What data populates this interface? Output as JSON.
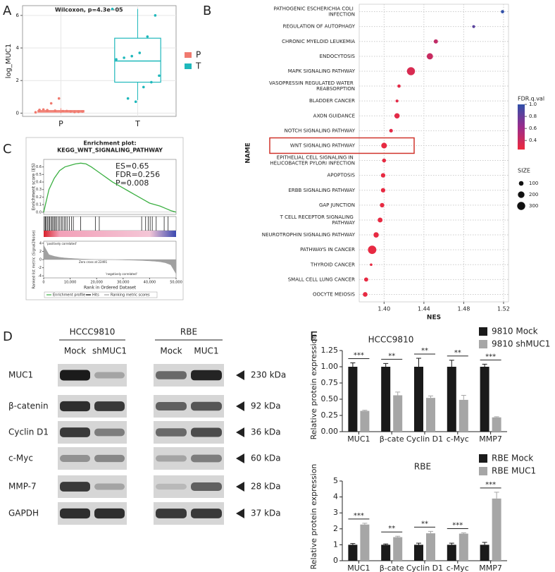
{
  "panels": [
    "A",
    "B",
    "C",
    "D",
    "E"
  ],
  "chart_data": [
    {
      "type": "box",
      "title": "Wilcoxon, p=4.3e−05",
      "ylabel": "log_MUC1",
      "categories": [
        "P",
        "T"
      ],
      "ylim": [
        -0.2,
        6.6
      ],
      "yticks": [
        0,
        2,
        4,
        6
      ],
      "grid": true,
      "legend": "right",
      "series": [
        {
          "name": "P",
          "color": "#f07a6f",
          "stats": {
            "min": 0,
            "q1": 0.06,
            "median": 0.1,
            "q3": 0.16,
            "max": 0.3
          },
          "points": [
            0.05,
            0.08,
            0.1,
            0.12,
            0.15,
            0.18,
            0.2,
            0.1,
            0.07,
            0.13,
            0.9,
            0.6,
            0.22
          ]
        },
        {
          "name": "T",
          "color": "#1fb8bb",
          "stats": {
            "min": 0.8,
            "q1": 1.9,
            "median": 3.2,
            "q3": 4.6,
            "max": 6.4
          },
          "points": [
            6.4,
            6.0,
            4.7,
            3.7,
            3.5,
            3.4,
            3.3,
            2.3,
            1.9,
            1.6,
            0.7,
            0.9
          ]
        }
      ]
    },
    {
      "type": "dot",
      "xlabel": "NES",
      "ylabel": "NAME",
      "categories": [
        "PATHOGENIC ESCHERICHIA COLI INFECTION",
        "REGULATION OF AUTOPHAGY",
        "CHRONIC MYELOID LEUKEMIA",
        "ENDOCYTOSIS",
        "MAPK SIGNALING PATHWAY",
        "VASOPRESSIN REGULATED WATER REABSORPTION",
        "BLADDER CANCER",
        "AXON GUIDANCE",
        "NOTCH SIGNALING PATHWAY",
        "WNT SIGNALING PATHWAY",
        "EPITHELIAL CELL SIGNALING IN HELICOBACTER PYLORI INFECTION",
        "APOPTOSIS",
        "ERBB SIGNALING PATHWAY",
        "GAP JUNCTION",
        "T CELL RECEPTOR SIGNALING PATHWAY",
        "NEUROTROPHIN SIGNALING PATHWAY",
        "PATHWAYS IN CANCER",
        "THYROID CANCER",
        "SMALL CELL LUNG CANCER",
        "OOCYTE MEIOSIS"
      ],
      "values": [
        1.519,
        1.49,
        1.452,
        1.446,
        1.427,
        1.415,
        1.413,
        1.413,
        1.407,
        1.4,
        1.4,
        1.399,
        1.399,
        1.398,
        1.396,
        1.392,
        1.388,
        1.387,
        1.382,
        1.381
      ],
      "sizes": [
        50,
        40,
        80,
        180,
        300,
        50,
        40,
        130,
        60,
        150,
        70,
        90,
        90,
        90,
        110,
        130,
        325,
        30,
        80,
        100
      ],
      "colors_by": [
        1.0,
        0.85,
        0.45,
        0.42,
        0.35,
        0.3,
        0.3,
        0.3,
        0.3,
        0.28,
        0.28,
        0.28,
        0.28,
        0.28,
        0.28,
        0.28,
        0.28,
        0.28,
        0.28,
        0.28
      ],
      "xlim": [
        1.375,
        1.525
      ],
      "xticks": [
        {
          "value": 1.4,
          "label": "1.40"
        },
        {
          "value": 1.44,
          "label": "1.44"
        },
        {
          "value": 1.48,
          "label": "1.48"
        },
        {
          "value": 1.52,
          "label": "1.52"
        }
      ],
      "grid": true,
      "color_title": "FDR.q.val",
      "color_lim": [
        0.25,
        1.0
      ],
      "color_range": [
        "#ee2a3c",
        "#9a2c8c",
        "#3050a8"
      ],
      "color_ticks": [
        0.4,
        0.6,
        0.8,
        {
          "value": 1.0,
          "label": "1.0"
        }
      ],
      "size_title": "SIZE",
      "size_ticks": [
        100,
        200,
        300
      ]
    },
    {
      "type": "line",
      "title": "Enrichment plot:",
      "subtitle": "KEGG_WNT_SIGNALING_PATHWAY",
      "ylabel": "Enrichment score (ES)",
      "y2label": "Ranked list metric (Signal2Noise)",
      "xlabel": "Rank in Ordered Dataset",
      "annotations": [
        "ES=0.65",
        "FDR=0.256",
        "P=0.008"
      ],
      "notes": [
        "'positively correlated'",
        "Zero cross at 22491",
        "'negatively correlated'"
      ],
      "x": [
        0,
        2000,
        4000,
        6000,
        8000,
        10000,
        12000,
        14000,
        16000,
        18000,
        20000,
        22000,
        24000,
        26000,
        28000,
        30000,
        32000,
        34000,
        36000,
        38000,
        40000,
        42000,
        44000,
        46000,
        48000,
        50000
      ],
      "series": [
        {
          "name": "Enrichment profile",
          "color": "#3cb043",
          "values": [
            0,
            0.3,
            0.45,
            0.55,
            0.6,
            0.62,
            0.64,
            0.65,
            0.64,
            0.6,
            0.55,
            0.5,
            0.45,
            0.4,
            0.36,
            0.32,
            0.28,
            0.24,
            0.2,
            0.16,
            0.12,
            0.1,
            0.08,
            0.05,
            0.02,
            0
          ]
        },
        {
          "name": "Ranking metric scores",
          "color": "#a0a0a0",
          "axis": "y2",
          "values": [
            3.5,
            1.2,
            0.8,
            0.55,
            0.4,
            0.3,
            0.22,
            0.15,
            0.1,
            0.06,
            0.03,
            0.01,
            -0.01,
            -0.03,
            -0.06,
            -0.09,
            -0.12,
            -0.16,
            -0.2,
            -0.26,
            -0.33,
            -0.42,
            -0.55,
            -0.8,
            -1.3,
            -3.5
          ]
        }
      ],
      "hits": {
        "name": "Hits",
        "color": "#000000",
        "x": [
          300,
          700,
          1000,
          1500,
          1900,
          2300,
          2800,
          3200,
          3600,
          4100,
          4500,
          5000,
          5600,
          6100,
          6700,
          7200,
          7800,
          8400,
          9000,
          9700,
          10500,
          11200,
          14000,
          19500,
          21000,
          37000,
          38500,
          39500,
          40200,
          41000,
          42500,
          45500,
          47000
        ]
      },
      "xlim": [
        0,
        50000
      ],
      "xticks": [
        0,
        {
          "value": 10000,
          "label": "10,000"
        },
        {
          "value": 20000,
          "label": "20,000"
        },
        {
          "value": 30000,
          "label": "30,000"
        },
        {
          "value": 40000,
          "label": "40,000"
        },
        {
          "value": 50000,
          "label": "50,000"
        }
      ],
      "ylim": [
        -0.03,
        0.7
      ],
      "yticks": [
        {
          "value": 0,
          "label": "0.0"
        },
        0.1,
        0.2,
        0.3,
        0.4,
        0.5,
        0.6
      ],
      "y2lim": [
        -4.5,
        4.5
      ],
      "y2ticks": [
        -4,
        -2,
        0,
        2,
        4
      ]
    },
    {
      "type": "bar",
      "title": "HCCC9810",
      "ylabel": "Relative protein expression",
      "categories": [
        "MUC1",
        "β-cate",
        "Cyclin D1",
        "c-Myc",
        "MMP7"
      ],
      "series": [
        {
          "name": "9810 Mock",
          "color": "#1a1a1a",
          "values": [
            1,
            1,
            1,
            1,
            1
          ],
          "errors": [
            0.06,
            0.05,
            0.13,
            0.1,
            0.04
          ]
        },
        {
          "name": "9810 shMUC1",
          "color": "#a6a6a6",
          "values": [
            0.32,
            0.56,
            0.52,
            0.49,
            0.22
          ],
          "errors": [
            0.01,
            0.05,
            0.03,
            0.07,
            0.01
          ]
        }
      ],
      "significance": [
        "***",
        "**",
        "**",
        "**",
        "***"
      ],
      "ylim": [
        0,
        1.25
      ],
      "yticks": [
        {
          "value": 0,
          "label": "0.00"
        },
        {
          "value": 0.25,
          "label": "0.25"
        },
        {
          "value": 0.5,
          "label": "0.50"
        },
        {
          "value": 0.75,
          "label": "0.75"
        },
        {
          "value": 1,
          "label": "1.00"
        },
        {
          "value": 1.25,
          "label": "1.25"
        }
      ],
      "legend": "top-right"
    },
    {
      "type": "bar",
      "title": "RBE",
      "ylabel": "Relative protein expression",
      "categories": [
        "MUC1",
        "β-cate",
        "Cyclin D1",
        "c-Myc",
        "MMP7"
      ],
      "series": [
        {
          "name": "RBE Mock",
          "color": "#1a1a1a",
          "values": [
            1,
            1,
            1,
            1,
            1
          ],
          "errors": [
            0.08,
            0.05,
            0.1,
            0.1,
            0.15
          ]
        },
        {
          "name": "RBE MUC1",
          "color": "#a6a6a6",
          "values": [
            2.27,
            1.48,
            1.72,
            1.7,
            3.9
          ],
          "errors": [
            0.08,
            0.06,
            0.12,
            0.05,
            0.4
          ]
        }
      ],
      "significance": [
        "***",
        "**",
        "**",
        "***",
        "***"
      ],
      "ylim": [
        0,
        5
      ],
      "yticks": [
        0,
        1,
        2,
        3,
        4,
        5
      ],
      "legend": "top-right"
    }
  ],
  "blot": {
    "groups": [
      {
        "name": "HCCC9810",
        "lanes": [
          "Mock",
          "shMUC1"
        ]
      },
      {
        "name": "RBE",
        "lanes": [
          "Mock",
          "MUC1"
        ]
      }
    ],
    "rows": [
      {
        "protein": "MUC1",
        "size": "230 kDa"
      },
      {
        "protein": "β-catenin",
        "size": "92 kDa"
      },
      {
        "protein": "Cyclin D1",
        "size": "36 kDa"
      },
      {
        "protein": "c-Myc",
        "size": "60 kDa"
      },
      {
        "protein": "MMP-7",
        "size": "28 kDa"
      },
      {
        "protein": "GAPDH",
        "size": "37 kDa"
      }
    ]
  }
}
